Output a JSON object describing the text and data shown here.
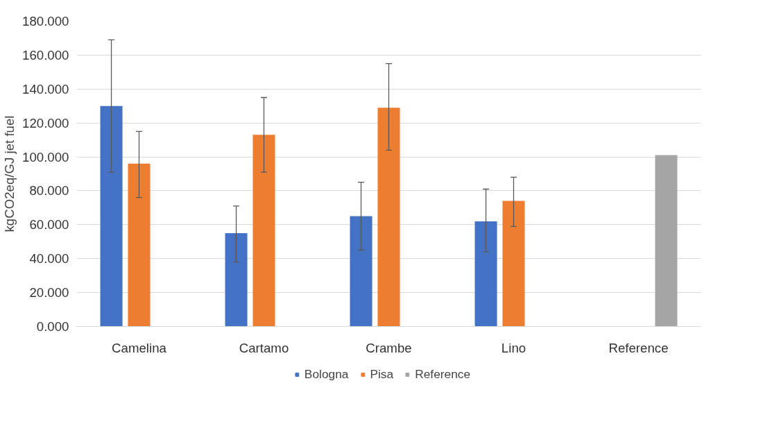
{
  "chart_data": {
    "type": "bar",
    "ylabel": "kgCO2eq/GJ jet fuel",
    "categories": [
      "Camelina",
      "Cartamo",
      "Crambe",
      "Lino",
      "Reference"
    ],
    "series": [
      {
        "name": "Bologna",
        "color": "#4472c4",
        "values": [
          130,
          55,
          65,
          62,
          null
        ],
        "errors": [
          [
            91,
            169
          ],
          [
            38,
            71
          ],
          [
            45,
            85
          ],
          [
            44,
            81
          ],
          null
        ]
      },
      {
        "name": "Pisa",
        "color": "#ed7d31",
        "values": [
          96,
          113,
          129,
          74,
          null
        ],
        "errors": [
          [
            76,
            115
          ],
          [
            91,
            135
          ],
          [
            104,
            155
          ],
          [
            59,
            88
          ],
          null
        ]
      },
      {
        "name": "Reference",
        "color": "#a5a5a5",
        "values": [
          null,
          null,
          null,
          null,
          101
        ]
      }
    ],
    "ylim": [
      0,
      180
    ],
    "yticks": [
      {
        "value": 0,
        "label": "0.000"
      },
      {
        "value": 20,
        "label": "20.000"
      },
      {
        "value": 40,
        "label": "40.000"
      },
      {
        "value": 60,
        "label": "60.000"
      },
      {
        "value": 80,
        "label": "80.000"
      },
      {
        "value": 100,
        "label": "100.000"
      },
      {
        "value": 120,
        "label": "120.000"
      },
      {
        "value": 140,
        "label": "140.000"
      },
      {
        "value": 160,
        "label": "160.000"
      },
      {
        "value": 180,
        "label": "180.000"
      }
    ],
    "grid": "y",
    "legend": "bottom"
  }
}
